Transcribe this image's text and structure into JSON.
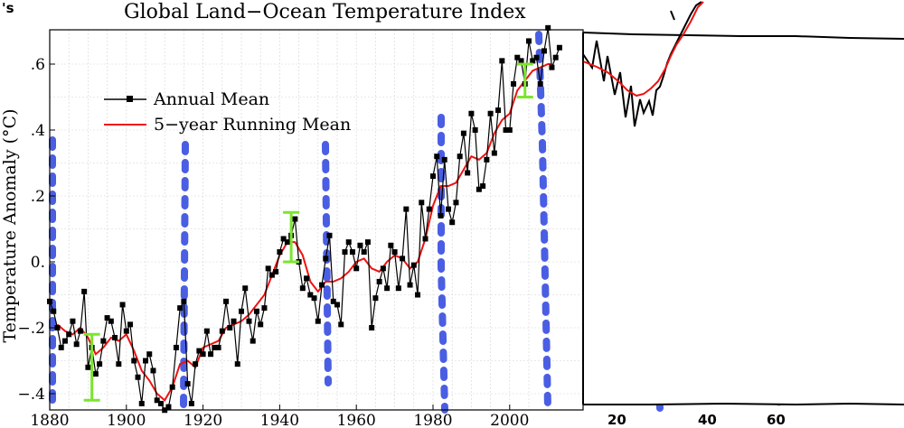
{
  "chart_data": {
    "type": "line",
    "title": "Global Land−Ocean Temperature Index",
    "corner_mark": "'s",
    "ylabel": "Temperature Anomaly (°C)",
    "xlabel": "",
    "xlim": [
      1880,
      2014
    ],
    "ylim": [
      -0.45,
      0.7
    ],
    "x_ticks": [
      1880,
      1900,
      1920,
      1940,
      1960,
      1980,
      2000
    ],
    "y_ticks": [
      {
        "v": 0.6,
        "label": ".6"
      },
      {
        "v": 0.4,
        "label": ".4"
      },
      {
        "v": 0.2,
        "label": ".2"
      },
      {
        "v": 0.0,
        "label": "0."
      },
      {
        "v": -0.2,
        "label": "−.2"
      },
      {
        "v": -0.4,
        "label": "−.4"
      }
    ],
    "grid": true,
    "legend": {
      "placement": "top-left",
      "entries": [
        {
          "label": "Annual Mean",
          "color": "#000000",
          "marker": "square"
        },
        {
          "label": "5−year Running Mean",
          "color": "#ee1111",
          "marker": "none"
        }
      ]
    },
    "series": [
      {
        "name": "Annual Mean",
        "color": "#000000",
        "x": [
          1880,
          1881,
          1882,
          1883,
          1884,
          1885,
          1886,
          1887,
          1888,
          1889,
          1890,
          1891,
          1892,
          1893,
          1894,
          1895,
          1896,
          1897,
          1898,
          1899,
          1900,
          1901,
          1902,
          1903,
          1904,
          1905,
          1906,
          1907,
          1908,
          1909,
          1910,
          1911,
          1912,
          1913,
          1914,
          1915,
          1916,
          1917,
          1918,
          1919,
          1920,
          1921,
          1922,
          1923,
          1924,
          1925,
          1926,
          1927,
          1928,
          1929,
          1930,
          1931,
          1932,
          1933,
          1934,
          1935,
          1936,
          1937,
          1938,
          1939,
          1940,
          1941,
          1942,
          1943,
          1944,
          1945,
          1946,
          1947,
          1948,
          1949,
          1950,
          1951,
          1952,
          1953,
          1954,
          1955,
          1956,
          1957,
          1958,
          1959,
          1960,
          1961,
          1962,
          1963,
          1964,
          1965,
          1966,
          1967,
          1968,
          1969,
          1970,
          1971,
          1972,
          1973,
          1974,
          1975,
          1976,
          1977,
          1978,
          1979,
          1980,
          1981,
          1982,
          1983,
          1984,
          1985,
          1986,
          1987,
          1988,
          1989,
          1990,
          1991,
          1992,
          1993,
          1994,
          1995,
          1996,
          1997,
          1998,
          1999,
          2000,
          2001,
          2002,
          2003,
          2004,
          2005,
          2006,
          2007,
          2008,
          2009,
          2010,
          2011,
          2012,
          2013
        ],
        "values": [
          -0.12,
          -0.15,
          -0.2,
          -0.26,
          -0.24,
          -0.22,
          -0.18,
          -0.25,
          -0.21,
          -0.09,
          -0.32,
          -0.26,
          -0.34,
          -0.31,
          -0.24,
          -0.17,
          -0.18,
          -0.23,
          -0.31,
          -0.13,
          -0.21,
          -0.19,
          -0.3,
          -0.35,
          -0.43,
          -0.3,
          -0.28,
          -0.33,
          -0.42,
          -0.43,
          -0.45,
          -0.44,
          -0.38,
          -0.26,
          -0.14,
          -0.12,
          -0.37,
          -0.43,
          -0.31,
          -0.27,
          -0.28,
          -0.21,
          -0.28,
          -0.26,
          -0.26,
          -0.21,
          -0.12,
          -0.2,
          -0.18,
          -0.31,
          -0.15,
          -0.08,
          -0.18,
          -0.24,
          -0.15,
          -0.19,
          -0.14,
          -0.02,
          -0.04,
          -0.03,
          0.03,
          0.07,
          0.06,
          0.08,
          0.13,
          0.0,
          -0.08,
          -0.05,
          -0.1,
          -0.11,
          -0.18,
          -0.07,
          0.01,
          0.08,
          -0.12,
          -0.13,
          -0.19,
          0.03,
          0.06,
          0.03,
          -0.02,
          0.05,
          0.03,
          0.06,
          -0.2,
          -0.11,
          -0.06,
          -0.02,
          -0.08,
          0.05,
          0.03,
          -0.08,
          0.01,
          0.16,
          -0.07,
          -0.01,
          -0.1,
          0.18,
          0.07,
          0.16,
          0.26,
          0.32,
          0.14,
          0.31,
          0.16,
          0.12,
          0.18,
          0.32,
          0.39,
          0.27,
          0.45,
          0.4,
          0.22,
          0.23,
          0.31,
          0.45,
          0.33,
          0.46,
          0.61,
          0.4,
          0.4,
          0.54,
          0.62,
          0.61,
          0.54,
          0.67,
          0.61,
          0.62,
          0.54,
          0.64,
          0.71,
          0.59,
          0.62,
          0.65
        ]
      },
      {
        "name": "5−year Running Mean",
        "color": "#ee1111",
        "x": [
          1882,
          1884,
          1886,
          1888,
          1890,
          1892,
          1894,
          1896,
          1898,
          1900,
          1902,
          1904,
          1906,
          1908,
          1910,
          1912,
          1914,
          1916,
          1918,
          1920,
          1922,
          1924,
          1926,
          1928,
          1930,
          1932,
          1934,
          1936,
          1938,
          1940,
          1942,
          1944,
          1946,
          1948,
          1950,
          1952,
          1954,
          1956,
          1958,
          1960,
          1962,
          1964,
          1966,
          1968,
          1970,
          1972,
          1974,
          1976,
          1978,
          1980,
          1982,
          1984,
          1986,
          1988,
          1990,
          1992,
          1994,
          1996,
          1998,
          2000,
          2002,
          2004,
          2006,
          2008,
          2010,
          2011
        ],
        "values": [
          -0.19,
          -0.21,
          -0.22,
          -0.2,
          -0.23,
          -0.28,
          -0.26,
          -0.23,
          -0.24,
          -0.22,
          -0.27,
          -0.33,
          -0.36,
          -0.4,
          -0.42,
          -0.38,
          -0.31,
          -0.3,
          -0.32,
          -0.26,
          -0.25,
          -0.24,
          -0.2,
          -0.19,
          -0.18,
          -0.16,
          -0.13,
          -0.1,
          -0.04,
          0.02,
          0.06,
          0.06,
          0.02,
          -0.06,
          -0.09,
          -0.06,
          -0.06,
          -0.05,
          -0.03,
          0.0,
          0.01,
          -0.02,
          -0.03,
          0.0,
          0.02,
          0.01,
          -0.02,
          0.0,
          0.07,
          0.17,
          0.23,
          0.23,
          0.24,
          0.28,
          0.32,
          0.31,
          0.33,
          0.39,
          0.43,
          0.45,
          0.52,
          0.55,
          0.58,
          0.59,
          0.6,
          0.6
        ]
      }
    ],
    "error_bars": [
      {
        "x": 1891,
        "low": -0.42,
        "high": -0.22,
        "color": "#7be52f"
      },
      {
        "x": 1943,
        "low": 0.0,
        "high": 0.15,
        "color": "#7be52f"
      },
      {
        "x": 2004,
        "low": 0.5,
        "high": 0.6,
        "color": "#7be52f"
      }
    ]
  },
  "annotations": {
    "handwritten_x_labels": [
      "20",
      "40",
      "60"
    ]
  }
}
